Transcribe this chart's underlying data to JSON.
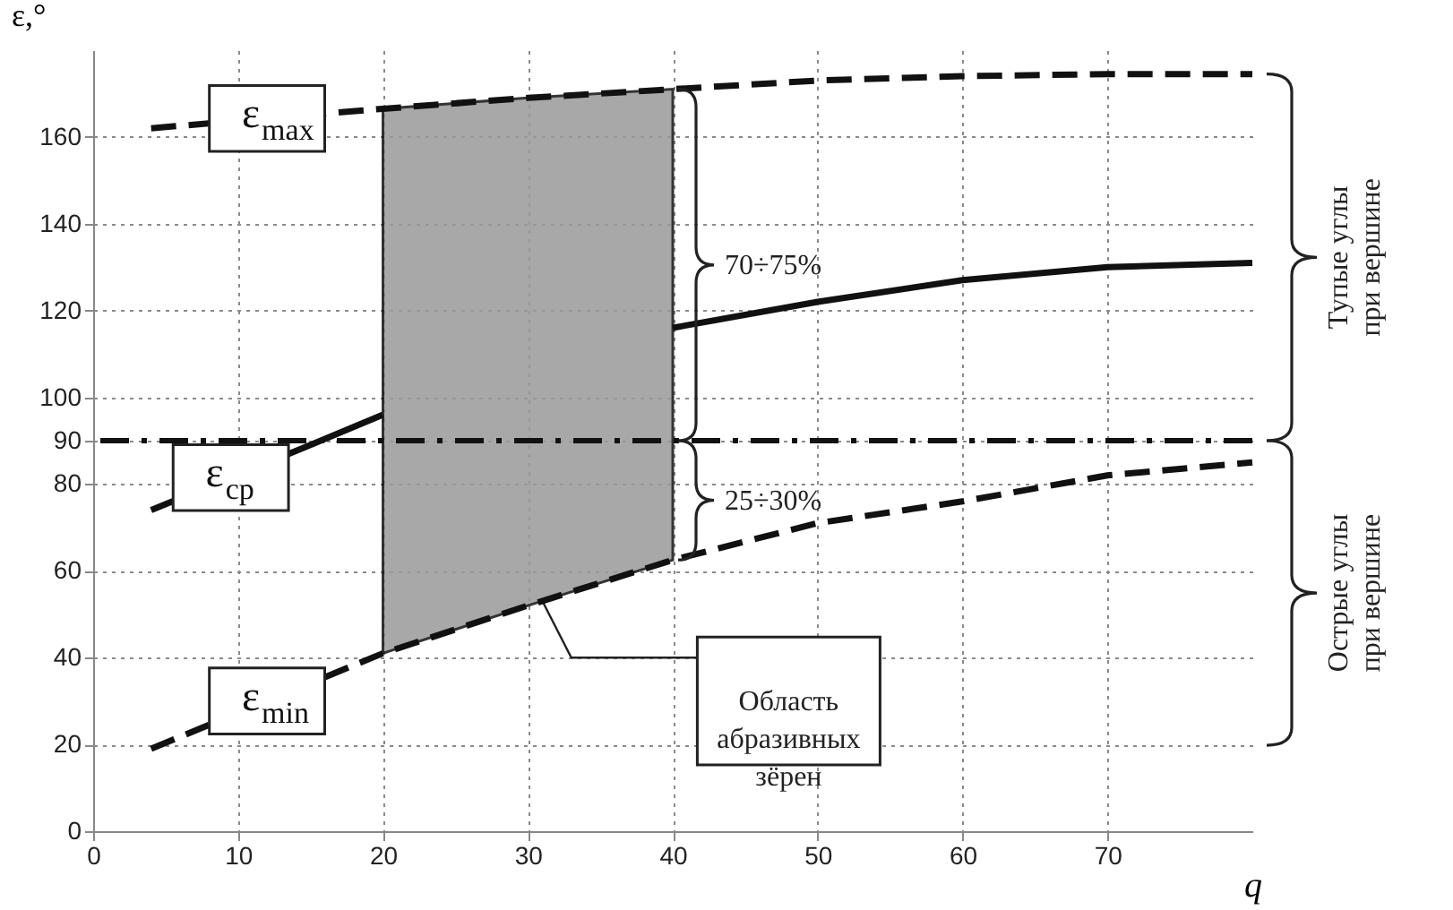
{
  "chart_data": {
    "type": "line",
    "xlabel": "q",
    "ylabel": "ε,°",
    "xlim": [
      0,
      80
    ],
    "ylim": [
      0,
      180
    ],
    "xticks": [
      0,
      10,
      20,
      30,
      40,
      50,
      60,
      70
    ],
    "yticks": [
      0,
      20,
      40,
      60,
      80,
      90,
      100,
      120,
      140,
      160
    ],
    "grid": true,
    "legend": false,
    "marker": "none",
    "series": [
      {
        "name": "ε$_{max}$",
        "color": "#111111",
        "line_style": "dashed",
        "x": [
          4,
          20,
          30,
          40,
          50,
          60,
          70,
          80
        ],
        "values": [
          162,
          166.5,
          169,
          171,
          173,
          174,
          174.5,
          174.5
        ]
      },
      {
        "name": "ε$_{cp}$",
        "color": "#111111",
        "line_style": "solid",
        "x": [
          4,
          15,
          20,
          30,
          40,
          50,
          60,
          70,
          80
        ],
        "values": [
          74,
          89,
          96,
          null,
          116,
          122,
          127,
          130,
          131
        ]
      },
      {
        "name": "ε$_{min}$",
        "color": "#111111",
        "line_style": "dashed",
        "x": [
          4,
          20,
          30,
          40,
          50,
          60,
          70,
          80
        ],
        "values": [
          19,
          41,
          52,
          62.5,
          71,
          76,
          82,
          85
        ]
      }
    ],
    "ref_lines": [
      {
        "axis": "y",
        "value": 90,
        "color": "#111111",
        "line_style": "dashdot"
      }
    ],
    "bands": [
      {
        "axis": "x",
        "from": 20,
        "to": 40,
        "label": "Область абразивных зёрен",
        "color": "#9a9a9a"
      }
    ],
    "annotations": [
      "70÷75%",
      "25÷30%",
      "Тупые углы при вершине",
      "Острые углы при вершине"
    ]
  }
}
